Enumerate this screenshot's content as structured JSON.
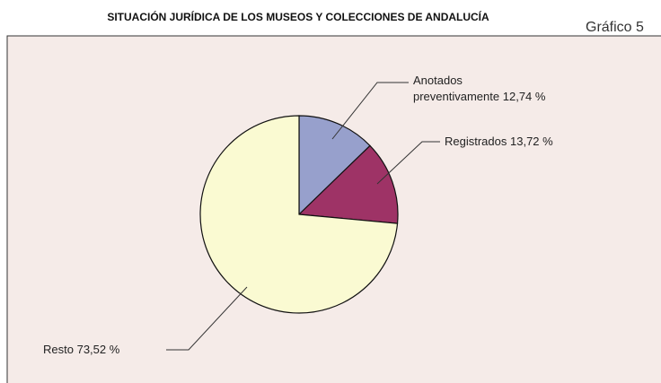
{
  "chart_data": {
    "type": "pie",
    "title": "SITUACIÓN JURÍDICA DE LOS MUSEOS Y COLECCIONES DE ANDALUCÍA",
    "figure_label": "Gráfico 5",
    "categories": [
      "Anotados preventivamente",
      "Registrados",
      "Resto"
    ],
    "values": [
      12.74,
      13.72,
      73.52
    ],
    "value_labels": [
      "12,74 %",
      "13,72 %",
      "73,52 %"
    ],
    "colors": [
      "#97a0cc",
      "#9e3366",
      "#fafad2"
    ]
  }
}
